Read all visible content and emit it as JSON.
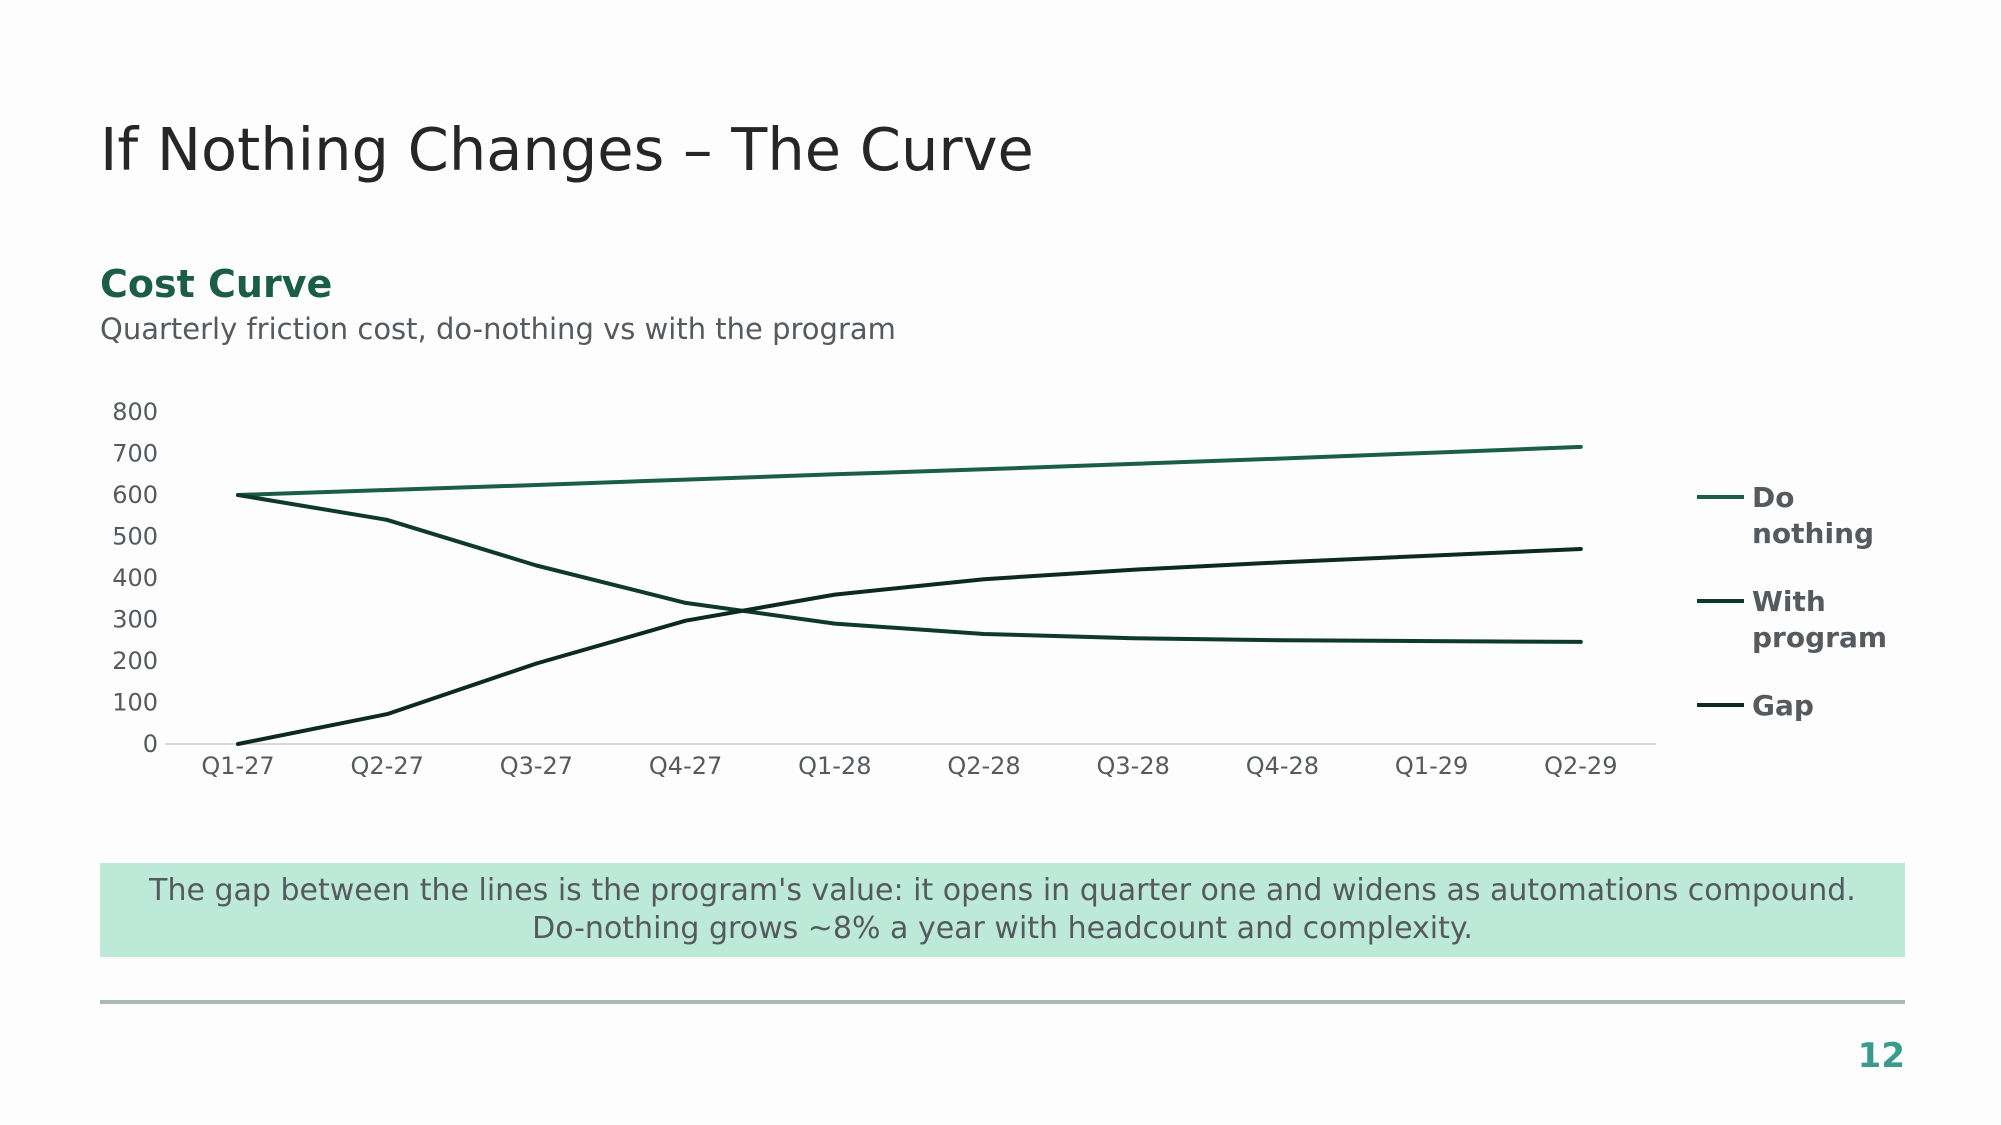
{
  "slide": {
    "title": "If Nothing Changes – The Curve",
    "page_number": "12"
  },
  "section": {
    "heading": "Cost Curve",
    "subtitle": "Quarterly friction cost, do-nothing vs with the program"
  },
  "callout": {
    "line1": "The gap between the lines is the program's value: it opens in quarter one and widens as automations compound.",
    "line2": "Do-nothing grows ~8% a year with headcount and complexity."
  },
  "colors": {
    "accent": "#1b5e45",
    "callout_bg": "#bde9d9",
    "text": "#555a5e",
    "page_number": "#3a9b8c"
  },
  "chart_data": {
    "type": "line",
    "categories": [
      "Q1-27",
      "Q2-27",
      "Q3-27",
      "Q4-27",
      "Q1-28",
      "Q2-28",
      "Q3-28",
      "Q4-28",
      "Q1-29",
      "Q2-29"
    ],
    "yticks": [
      0,
      100,
      200,
      300,
      400,
      500,
      600,
      700,
      800
    ],
    "ylim": [
      0,
      800
    ],
    "grid": false,
    "legend_position": "right",
    "series": [
      {
        "name": "Do nothing",
        "legend_lines": [
          "Do",
          "nothing"
        ],
        "color": "#1b5e45",
        "values": [
          600,
          612,
          624,
          637,
          650,
          662,
          675,
          688,
          702,
          716
        ]
      },
      {
        "name": "With program",
        "legend_lines": [
          "With",
          "program"
        ],
        "color": "#0f3a2b",
        "values": [
          600,
          540,
          430,
          340,
          290,
          265,
          255,
          250,
          248,
          246
        ]
      },
      {
        "name": "Gap",
        "legend_lines": [
          "Gap"
        ],
        "color": "#0c2a1f",
        "values": [
          0,
          72,
          194,
          297,
          360,
          397,
          420,
          438,
          454,
          470
        ]
      }
    ]
  }
}
